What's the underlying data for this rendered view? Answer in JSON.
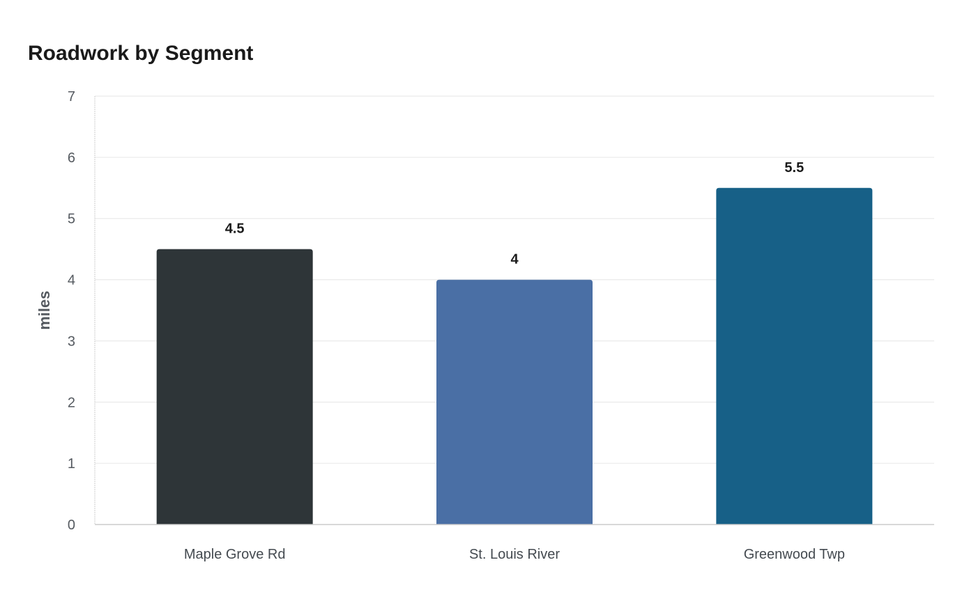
{
  "chart_data": {
    "type": "bar",
    "title": "Roadwork by Segment",
    "xlabel": "",
    "ylabel": "miles",
    "categories": [
      "Maple Grove Rd",
      "St. Louis River",
      "Greenwood Twp"
    ],
    "values": [
      4.5,
      4,
      5.5
    ],
    "data_labels": [
      "4.5",
      "4",
      "5.5"
    ],
    "colors": [
      "#2e3538",
      "#4a6fa5",
      "#176087"
    ],
    "ylim": [
      0,
      7
    ],
    "yticks": [
      0,
      1,
      2,
      3,
      4,
      5,
      6,
      7
    ],
    "grid": true,
    "legend": "none"
  }
}
